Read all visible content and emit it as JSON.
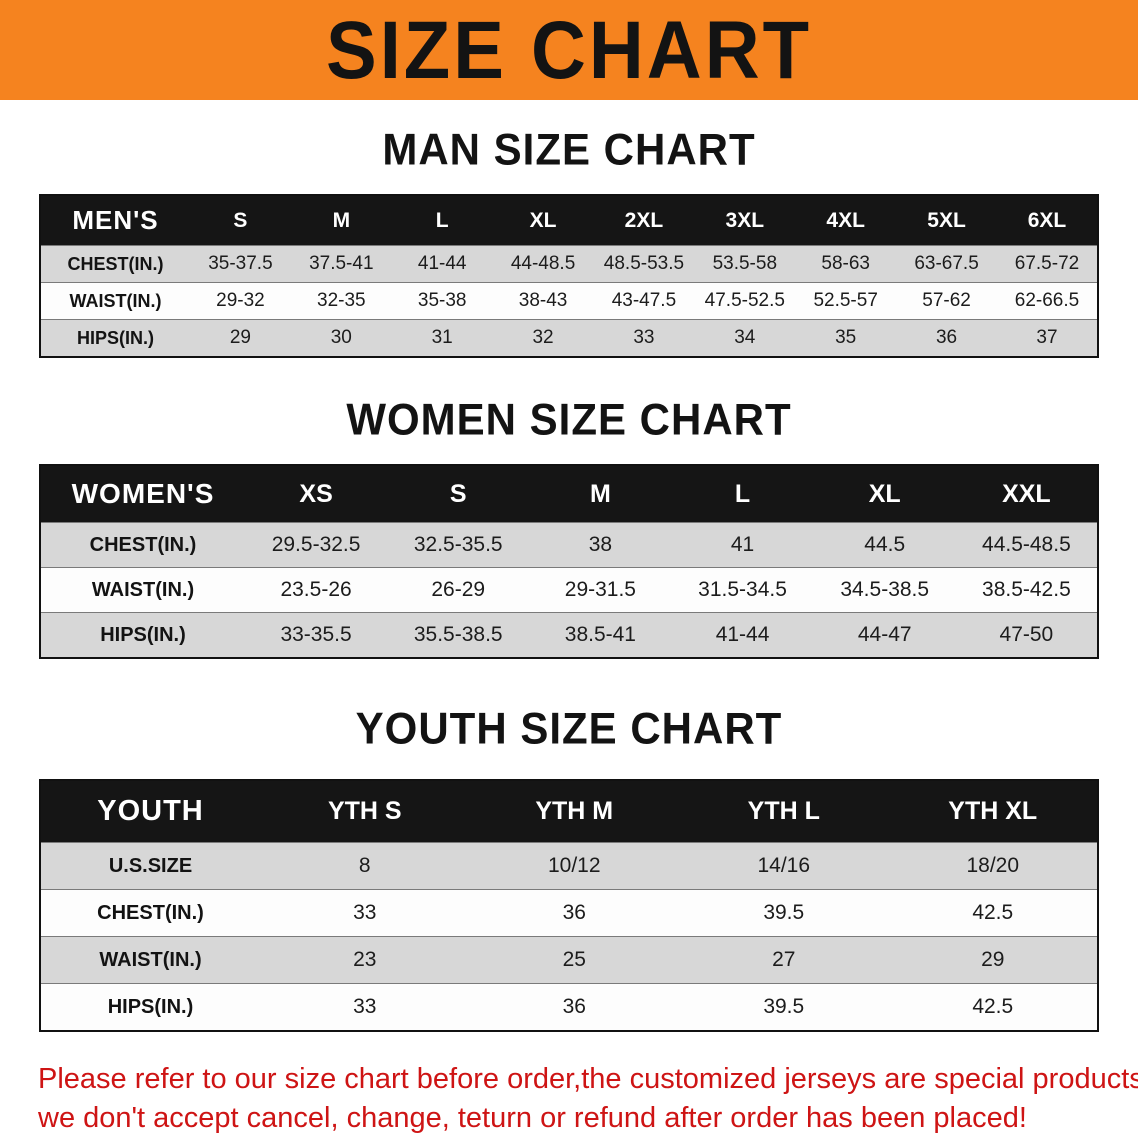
{
  "banner": {
    "title": "SIZE CHART",
    "bg_color": "#f5831f"
  },
  "sections": [
    {
      "heading": "MAN SIZE CHART",
      "table": {
        "header": [
          "MEN'S",
          "S",
          "M",
          "L",
          "XL",
          "2XL",
          "3XL",
          "4XL",
          "5XL",
          "6XL"
        ],
        "rows": [
          [
            "CHEST(IN.)",
            "35-37.5",
            "37.5-41",
            "41-44",
            "44-48.5",
            "48.5-53.5",
            "53.5-58",
            "58-63",
            "63-67.5",
            "67.5-72"
          ],
          [
            "WAIST(IN.)",
            "29-32",
            "32-35",
            "35-38",
            "38-43",
            "43-47.5",
            "47.5-52.5",
            "52.5-57",
            "57-62",
            "62-66.5"
          ],
          [
            "HIPS(IN.)",
            "29",
            "30",
            "31",
            "32",
            "33",
            "34",
            "35",
            "36",
            "37"
          ]
        ]
      }
    },
    {
      "heading": "WOMEN SIZE CHART",
      "table": {
        "header": [
          "WOMEN'S",
          "XS",
          "S",
          "M",
          "L",
          "XL",
          "XXL"
        ],
        "rows": [
          [
            "CHEST(IN.)",
            "29.5-32.5",
            "32.5-35.5",
            "38",
            "41",
            "44.5",
            "44.5-48.5"
          ],
          [
            "WAIST(IN.)",
            "23.5-26",
            "26-29",
            "29-31.5",
            "31.5-34.5",
            "34.5-38.5",
            "38.5-42.5"
          ],
          [
            "HIPS(IN.)",
            "33-35.5",
            "35.5-38.5",
            "38.5-41",
            "41-44",
            "44-47",
            "47-50"
          ]
        ]
      }
    },
    {
      "heading": "YOUTH SIZE CHART",
      "table": {
        "header": [
          "YOUTH",
          "YTH S",
          "YTH M",
          "YTH L",
          "YTH XL"
        ],
        "rows": [
          [
            "U.S.SIZE",
            "8",
            "10/12",
            "14/16",
            "18/20"
          ],
          [
            "CHEST(IN.)",
            "33",
            "36",
            "39.5",
            "42.5"
          ],
          [
            "WAIST(IN.)",
            "23",
            "25",
            "27",
            "29"
          ],
          [
            "HIPS(IN.)",
            "33",
            "36",
            "39.5",
            "42.5"
          ]
        ]
      }
    }
  ],
  "footer": {
    "line1": "Please refer to our size chart before order,the customized jerseys are special products,",
    "line2": "we don't accept cancel, change, teturn or refund after order has been placed!",
    "text_color": "#ce1414"
  }
}
